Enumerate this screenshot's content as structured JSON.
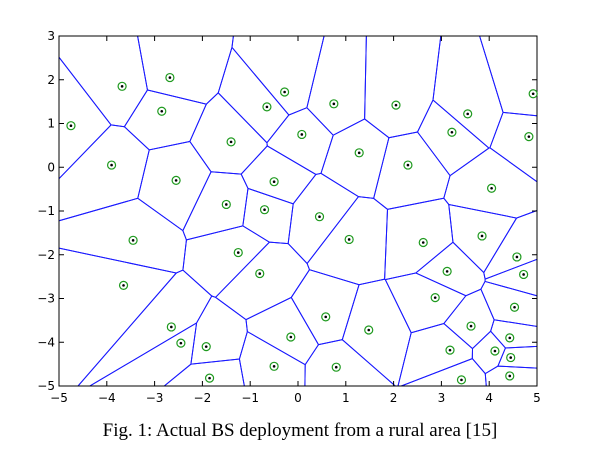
{
  "chart_data": {
    "type": "scatter",
    "caption": "Fig. 1: Actual BS deployment from a rural area [15]",
    "x": [
      -4.75,
      -3.68,
      -2.68,
      -2.85,
      -3.9,
      -2.55,
      -1.4,
      -0.65,
      -0.28,
      0.08,
      0.75,
      2.05,
      1.28,
      2.3,
      3.55,
      3.22,
      4.92,
      4.83,
      4.05,
      -0.5,
      -1.5,
      -0.7,
      0.45,
      -3.45,
      -1.25,
      1.07,
      2.62,
      3.85,
      4.58,
      4.72,
      -3.65,
      -0.8,
      3.12,
      2.87,
      0.58,
      1.48,
      4.53,
      3.62,
      -2.65,
      -2.45,
      -1.92,
      -0.15,
      4.43,
      4.12,
      4.45,
      3.18,
      -0.5,
      0.8,
      -1.85,
      4.43,
      3.42
    ],
    "y": [
      0.95,
      1.85,
      2.05,
      1.28,
      0.05,
      -0.3,
      0.58,
      1.38,
      1.72,
      0.75,
      1.45,
      1.42,
      0.33,
      0.05,
      1.22,
      0.8,
      1.68,
      0.7,
      -0.48,
      -0.33,
      -0.85,
      -0.97,
      -1.13,
      -1.67,
      -1.95,
      -1.65,
      -1.72,
      -1.57,
      -2.05,
      -2.45,
      -2.7,
      -2.43,
      -2.38,
      -2.98,
      -3.42,
      -3.72,
      -3.2,
      -3.63,
      -3.65,
      -4.02,
      -4.1,
      -3.88,
      -3.9,
      -4.2,
      -4.35,
      -4.18,
      -4.55,
      -4.57,
      -4.82,
      -4.77,
      -4.86
    ],
    "marker_color": "#1f9a1f",
    "cell_color": "#1a1aff",
    "xlim": [
      -5,
      5
    ],
    "xticks": [
      {
        "value": -5,
        "label": "−5"
      },
      {
        "value": -4,
        "label": "−4"
      },
      {
        "value": -3,
        "label": "−3"
      },
      {
        "value": -2,
        "label": "−2"
      },
      {
        "value": -1,
        "label": "−1"
      },
      0,
      1,
      2,
      3,
      4,
      5
    ],
    "ylim": [
      -5,
      3
    ],
    "yticks": [
      {
        "value": -5,
        "label": "−5"
      },
      {
        "value": -4,
        "label": "−4"
      },
      {
        "value": -3,
        "label": "−3"
      },
      {
        "value": -2,
        "label": "−2"
      },
      {
        "value": -1,
        "label": "−1"
      },
      0,
      1,
      2,
      3
    ]
  }
}
